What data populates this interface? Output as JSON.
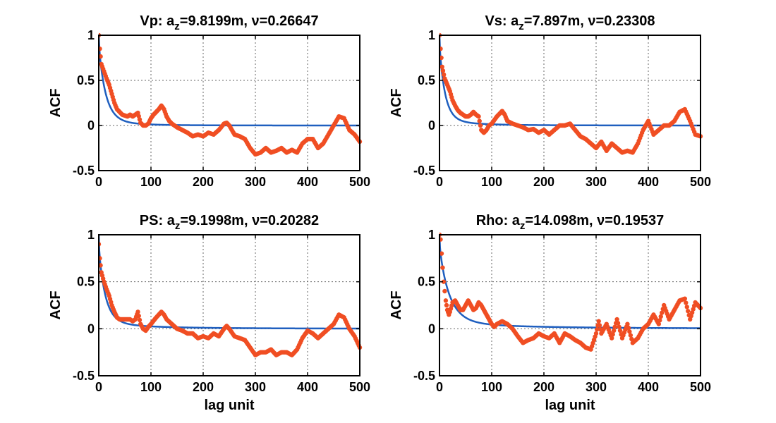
{
  "charts": [
    {
      "id": "vp",
      "type": "line",
      "title_prefix": "Vp: a",
      "title_sub": "z",
      "title_suffix": "=9.8199m, ν=0.26647",
      "xlabel": "",
      "ylabel": "ACF",
      "xlim": [
        0,
        500
      ],
      "ylim": [
        -0.5,
        1
      ],
      "xticks": [
        0,
        100,
        200,
        300,
        400,
        500
      ],
      "yticks": [
        -0.5,
        0,
        0.5,
        1
      ],
      "xtick_labels": [
        "0",
        "100",
        "200",
        "300",
        "400",
        "500"
      ],
      "ytick_labels": [
        "-0.5",
        "0",
        "0.5",
        "1"
      ],
      "grid": true,
      "series": [
        {
          "style": "line",
          "color": "#1f5fbf",
          "a": 9.8199,
          "nu": 0.26647
        },
        {
          "style": "dots",
          "color": "#f04e23",
          "x": [
            0,
            2,
            5,
            10,
            15,
            20,
            25,
            30,
            35,
            40,
            45,
            50,
            55,
            60,
            65,
            70,
            75,
            80,
            85,
            90,
            95,
            100,
            105,
            110,
            115,
            120,
            125,
            130,
            135,
            140,
            150,
            160,
            170,
            180,
            190,
            200,
            210,
            220,
            230,
            240,
            245,
            250,
            260,
            270,
            280,
            290,
            300,
            310,
            320,
            330,
            340,
            350,
            360,
            370,
            380,
            390,
            400,
            410,
            420,
            430,
            440,
            450,
            460,
            470,
            480,
            490,
            500
          ],
          "y": [
            1,
            0.85,
            0.68,
            0.6,
            0.52,
            0.45,
            0.35,
            0.25,
            0.18,
            0.15,
            0.12,
            0.11,
            0.1,
            0.12,
            0.1,
            0.12,
            0.14,
            0.03,
            0,
            0,
            0.02,
            0.08,
            0.12,
            0.15,
            0.18,
            0.22,
            0.18,
            0.1,
            0.05,
            0.02,
            -0.02,
            -0.05,
            -0.08,
            -0.12,
            -0.1,
            -0.12,
            -0.08,
            -0.1,
            -0.05,
            0.02,
            0.03,
            0,
            -0.1,
            -0.12,
            -0.15,
            -0.25,
            -0.32,
            -0.3,
            -0.25,
            -0.3,
            -0.28,
            -0.25,
            -0.3,
            -0.27,
            -0.3,
            -0.2,
            -0.15,
            -0.15,
            -0.25,
            -0.2,
            -0.1,
            0,
            0.1,
            0.08,
            -0.05,
            -0.1,
            -0.18
          ]
        }
      ]
    },
    {
      "id": "vs",
      "type": "line",
      "title_prefix": "Vs: a",
      "title_sub": "z",
      "title_suffix": "=7.897m, ν=0.23308",
      "xlabel": "",
      "ylabel": "ACF",
      "xlim": [
        0,
        500
      ],
      "ylim": [
        -0.5,
        1
      ],
      "xticks": [
        0,
        100,
        200,
        300,
        400,
        500
      ],
      "yticks": [
        -0.5,
        0,
        0.5,
        1
      ],
      "xtick_labels": [
        "0",
        "100",
        "200",
        "300",
        "400",
        "500"
      ],
      "ytick_labels": [
        "-0.5",
        "0",
        "0.5",
        "1"
      ],
      "grid": true,
      "series": [
        {
          "style": "line",
          "color": "#1f5fbf",
          "a": 7.897,
          "nu": 0.23308
        },
        {
          "style": "dots",
          "color": "#f04e23",
          "x": [
            0,
            2,
            5,
            10,
            15,
            20,
            25,
            30,
            35,
            40,
            45,
            50,
            55,
            60,
            65,
            70,
            75,
            80,
            85,
            90,
            95,
            100,
            110,
            120,
            125,
            130,
            140,
            150,
            160,
            170,
            180,
            190,
            200,
            210,
            220,
            230,
            240,
            250,
            260,
            270,
            280,
            290,
            300,
            310,
            320,
            330,
            340,
            350,
            360,
            370,
            380,
            390,
            395,
            400,
            410,
            420,
            430,
            440,
            450,
            460,
            470,
            480,
            490,
            500
          ],
          "y": [
            1,
            0.85,
            0.65,
            0.52,
            0.45,
            0.38,
            0.28,
            0.22,
            0.17,
            0.14,
            0.12,
            0.1,
            0.1,
            0.12,
            0.15,
            0.12,
            0.1,
            -0.05,
            -0.08,
            -0.05,
            0,
            0.02,
            0.1,
            0.16,
            0.12,
            0.05,
            0.02,
            0,
            -0.02,
            -0.05,
            -0.04,
            -0.08,
            -0.05,
            -0.1,
            -0.05,
            0,
            0,
            0.02,
            -0.05,
            -0.12,
            -0.15,
            -0.2,
            -0.25,
            -0.18,
            -0.28,
            -0.2,
            -0.25,
            -0.3,
            -0.28,
            -0.3,
            -0.2,
            -0.05,
            0,
            0.05,
            -0.1,
            -0.05,
            0,
            0,
            0.05,
            0.15,
            0.18,
            0.05,
            -0.1,
            -0.12
          ]
        }
      ]
    },
    {
      "id": "ps",
      "type": "line",
      "title_prefix": "PS: a",
      "title_sub": "z",
      "title_suffix": "=9.1998m, ν=0.20282",
      "xlabel": "lag unit",
      "ylabel": "ACF",
      "xlim": [
        0,
        500
      ],
      "ylim": [
        -0.5,
        1
      ],
      "xticks": [
        0,
        100,
        200,
        300,
        400,
        500
      ],
      "yticks": [
        -0.5,
        0,
        0.5,
        1
      ],
      "xtick_labels": [
        "0",
        "100",
        "200",
        "300",
        "400",
        "500"
      ],
      "ytick_labels": [
        "-0.5",
        "0",
        "0.5",
        "1"
      ],
      "grid": true,
      "series": [
        {
          "style": "line",
          "color": "#1f5fbf",
          "a": 9.1998,
          "nu": 0.20282
        },
        {
          "style": "dots",
          "color": "#f04e23",
          "x": [
            0,
            2,
            5,
            10,
            15,
            20,
            25,
            30,
            35,
            40,
            45,
            50,
            55,
            60,
            65,
            70,
            75,
            80,
            85,
            90,
            95,
            100,
            110,
            120,
            125,
            130,
            140,
            150,
            160,
            170,
            180,
            190,
            200,
            210,
            220,
            230,
            240,
            245,
            250,
            260,
            270,
            280,
            290,
            300,
            310,
            320,
            330,
            340,
            350,
            360,
            370,
            380,
            390,
            400,
            410,
            420,
            430,
            440,
            450,
            460,
            470,
            480,
            490,
            500
          ],
          "y": [
            0.9,
            0.75,
            0.6,
            0.5,
            0.42,
            0.35,
            0.25,
            0.18,
            0.12,
            0.1,
            0.1,
            0.1,
            0.1,
            0.1,
            0.08,
            0.1,
            0.18,
            0.05,
            0,
            -0.02,
            0.02,
            0.05,
            0.12,
            0.18,
            0.15,
            0.1,
            0.05,
            0,
            -0.02,
            -0.05,
            -0.05,
            -0.1,
            -0.08,
            -0.1,
            -0.05,
            -0.08,
            0,
            0.03,
            0,
            -0.08,
            -0.1,
            -0.12,
            -0.2,
            -0.28,
            -0.25,
            -0.25,
            -0.22,
            -0.28,
            -0.25,
            -0.25,
            -0.28,
            -0.22,
            -0.1,
            -0.02,
            -0.05,
            -0.1,
            -0.05,
            0,
            0.05,
            0.15,
            0.12,
            0,
            -0.08,
            -0.2
          ]
        }
      ]
    },
    {
      "id": "rho",
      "type": "line",
      "title_prefix": "Rho: a",
      "title_sub": "z",
      "title_suffix": "=14.098m, ν=0.19537",
      "xlabel": "lag unit",
      "ylabel": "ACF",
      "xlim": [
        0,
        500
      ],
      "ylim": [
        -0.5,
        1
      ],
      "xticks": [
        0,
        100,
        200,
        300,
        400,
        500
      ],
      "yticks": [
        -0.5,
        0,
        0.5,
        1
      ],
      "xtick_labels": [
        "0",
        "100",
        "200",
        "300",
        "400",
        "500"
      ],
      "ytick_labels": [
        "-0.5",
        "0",
        "0.5",
        "1"
      ],
      "grid": true,
      "series": [
        {
          "style": "line",
          "color": "#1f5fbf",
          "a": 14.098,
          "nu": 0.19537
        },
        {
          "style": "dots",
          "color": "#f04e23",
          "x": [
            0,
            2,
            4,
            6,
            8,
            10,
            12,
            15,
            18,
            20,
            25,
            30,
            35,
            40,
            45,
            50,
            55,
            60,
            65,
            70,
            75,
            80,
            85,
            90,
            95,
            100,
            105,
            110,
            120,
            130,
            140,
            150,
            160,
            170,
            180,
            190,
            200,
            210,
            220,
            230,
            240,
            250,
            260,
            270,
            280,
            290,
            300,
            305,
            310,
            320,
            330,
            340,
            350,
            360,
            370,
            380,
            390,
            400,
            410,
            420,
            430,
            440,
            450,
            460,
            470,
            480,
            490,
            500
          ],
          "y": [
            1,
            0.95,
            0.8,
            0.65,
            0.5,
            0.4,
            0.3,
            0.2,
            0.15,
            0.18,
            0.28,
            0.3,
            0.25,
            0.2,
            0.2,
            0.25,
            0.3,
            0.25,
            0.2,
            0.22,
            0.28,
            0.25,
            0.2,
            0.15,
            0.1,
            0.05,
            0.02,
            0.05,
            0.08,
            0.05,
            0,
            -0.08,
            -0.15,
            -0.12,
            -0.1,
            -0.05,
            -0.08,
            -0.1,
            -0.05,
            -0.15,
            -0.05,
            -0.08,
            -0.12,
            -0.15,
            -0.2,
            -0.22,
            -0.05,
            0.08,
            -0.05,
            0.05,
            -0.1,
            0.1,
            -0.1,
            0.05,
            -0.15,
            -0.1,
            0,
            0.05,
            0.15,
            0.05,
            0.25,
            0.1,
            0.2,
            0.3,
            0.32,
            0.1,
            0.28,
            0.22
          ]
        }
      ]
    }
  ]
}
